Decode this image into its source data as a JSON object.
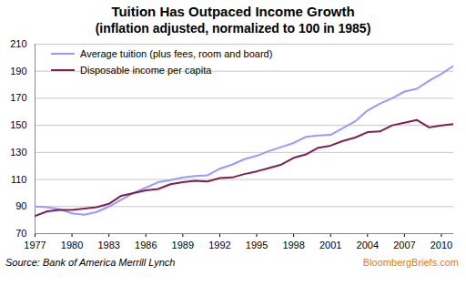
{
  "chart_data": {
    "type": "line",
    "title": "Tuition Has Outpaced Income Growth",
    "subtitle": "(inflation adjusted, normalized to 100 in 1985)",
    "caption": "Source: Bank of America Merrill Lynch",
    "credit": "BloombergBriefs.com",
    "x": [
      1977,
      1978,
      1979,
      1980,
      1981,
      1982,
      1983,
      1984,
      1985,
      1986,
      1987,
      1988,
      1989,
      1990,
      1991,
      1992,
      1993,
      1994,
      1995,
      1996,
      1997,
      1998,
      1999,
      2000,
      2001,
      2002,
      2003,
      2004,
      2005,
      2006,
      2007,
      2008,
      2009,
      2010,
      2011
    ],
    "series": [
      {
        "name": "Average tuition (plus fees, room and board)",
        "color": "#9999ff",
        "values": [
          90,
          89.5,
          88,
          85,
          84,
          86,
          90,
          95,
          100,
          104,
          108,
          109.5,
          111.5,
          112.5,
          113,
          118,
          121,
          125,
          127.5,
          131,
          134,
          137,
          141.5,
          142.5,
          143,
          148,
          153,
          161,
          166,
          170,
          175,
          177,
          183,
          188,
          194
        ]
      },
      {
        "name": "Disposable income per capita",
        "color": "#7f1f4f",
        "values": [
          83,
          86.5,
          87.5,
          87.5,
          88.5,
          89.5,
          92,
          98,
          100,
          102,
          103,
          106.5,
          108,
          109,
          108.5,
          111,
          111.5,
          114,
          116,
          118.5,
          121,
          126,
          128.5,
          133.5,
          135,
          138.5,
          141,
          145,
          145.5,
          150,
          152,
          154,
          148.5,
          150,
          151
        ]
      }
    ],
    "xlim": [
      1977,
      2011
    ],
    "xticks": [
      1977,
      1980,
      1983,
      1986,
      1989,
      1992,
      1995,
      1998,
      2001,
      2004,
      2007,
      2010
    ],
    "ylim": [
      70,
      210
    ],
    "yticks": [
      70,
      90,
      110,
      130,
      150,
      170,
      190,
      210
    ],
    "grid": true,
    "legend": "top-left"
  }
}
